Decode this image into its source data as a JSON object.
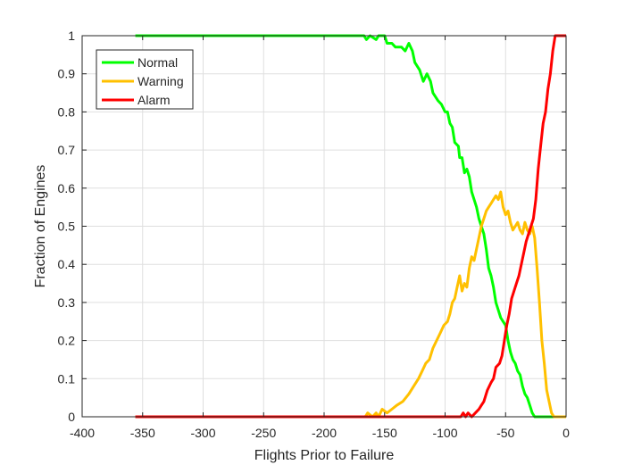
{
  "chart_data": {
    "type": "line",
    "title": "",
    "xlabel": "Flights Prior to Failure",
    "ylabel": "Fraction of Engines",
    "xlim": [
      -400,
      0
    ],
    "ylim": [
      0,
      1
    ],
    "x_ticks": [
      -400,
      -350,
      -300,
      -250,
      -200,
      -150,
      -100,
      -50,
      0
    ],
    "x_tick_labels": [
      "-400",
      "-350",
      "-300",
      "-250",
      "-200",
      "-150",
      "-100",
      "-50",
      "0"
    ],
    "y_ticks": [
      0,
      0.1,
      0.2,
      0.3,
      0.4,
      0.5,
      0.6,
      0.7,
      0.8,
      0.9,
      1
    ],
    "y_tick_labels": [
      "0",
      "0.1",
      "0.2",
      "0.3",
      "0.4",
      "0.5",
      "0.6",
      "0.7",
      "0.8",
      "0.9",
      "1"
    ],
    "grid": true,
    "legend_position": "top-left",
    "series": [
      {
        "name": "Normal",
        "color": "#00ff00",
        "points": [
          [
            -356,
            1.0
          ],
          [
            -167,
            1.0
          ],
          [
            -165,
            0.99
          ],
          [
            -162,
            1.0
          ],
          [
            -157,
            0.99
          ],
          [
            -155,
            1.0
          ],
          [
            -150,
            1.0
          ],
          [
            -148,
            0.98
          ],
          [
            -144,
            0.98
          ],
          [
            -141,
            0.97
          ],
          [
            -136,
            0.97
          ],
          [
            -133,
            0.96
          ],
          [
            -130,
            0.98
          ],
          [
            -127,
            0.96
          ],
          [
            -125,
            0.93
          ],
          [
            -121,
            0.91
          ],
          [
            -118,
            0.88
          ],
          [
            -115,
            0.9
          ],
          [
            -112,
            0.88
          ],
          [
            -110,
            0.85
          ],
          [
            -106,
            0.83
          ],
          [
            -103,
            0.82
          ],
          [
            -100,
            0.8
          ],
          [
            -98,
            0.8
          ],
          [
            -96,
            0.77
          ],
          [
            -94,
            0.76
          ],
          [
            -92,
            0.72
          ],
          [
            -89,
            0.71
          ],
          [
            -88,
            0.68
          ],
          [
            -86,
            0.68
          ],
          [
            -84,
            0.64
          ],
          [
            -82,
            0.65
          ],
          [
            -80,
            0.63
          ],
          [
            -78,
            0.59
          ],
          [
            -76,
            0.57
          ],
          [
            -74,
            0.55
          ],
          [
            -72,
            0.52
          ],
          [
            -70,
            0.5
          ],
          [
            -68,
            0.48
          ],
          [
            -66,
            0.44
          ],
          [
            -64,
            0.39
          ],
          [
            -62,
            0.37
          ],
          [
            -60,
            0.34
          ],
          [
            -58,
            0.3
          ],
          [
            -56,
            0.28
          ],
          [
            -54,
            0.26
          ],
          [
            -52,
            0.25
          ],
          [
            -50,
            0.24
          ],
          [
            -48,
            0.2
          ],
          [
            -46,
            0.17
          ],
          [
            -44,
            0.15
          ],
          [
            -42,
            0.14
          ],
          [
            -40,
            0.12
          ],
          [
            -38,
            0.11
          ],
          [
            -36,
            0.08
          ],
          [
            -34,
            0.06
          ],
          [
            -32,
            0.05
          ],
          [
            -30,
            0.03
          ],
          [
            -28,
            0.01
          ],
          [
            -26,
            0.0
          ],
          [
            0,
            0.0
          ]
        ]
      },
      {
        "name": "Warning",
        "color": "#ffc000",
        "points": [
          [
            -356,
            0.0
          ],
          [
            -166,
            0.0
          ],
          [
            -164,
            0.01
          ],
          [
            -160,
            0.0
          ],
          [
            -157,
            0.01
          ],
          [
            -155,
            0.0
          ],
          [
            -152,
            0.02
          ],
          [
            -148,
            0.01
          ],
          [
            -144,
            0.02
          ],
          [
            -140,
            0.03
          ],
          [
            -135,
            0.04
          ],
          [
            -130,
            0.06
          ],
          [
            -126,
            0.08
          ],
          [
            -122,
            0.1
          ],
          [
            -119,
            0.12
          ],
          [
            -116,
            0.14
          ],
          [
            -113,
            0.15
          ],
          [
            -110,
            0.18
          ],
          [
            -107,
            0.2
          ],
          [
            -104,
            0.22
          ],
          [
            -101,
            0.24
          ],
          [
            -98,
            0.25
          ],
          [
            -96,
            0.27
          ],
          [
            -94,
            0.3
          ],
          [
            -92,
            0.31
          ],
          [
            -90,
            0.34
          ],
          [
            -88,
            0.37
          ],
          [
            -86,
            0.33
          ],
          [
            -84,
            0.35
          ],
          [
            -82,
            0.34
          ],
          [
            -80,
            0.39
          ],
          [
            -78,
            0.42
          ],
          [
            -76,
            0.41
          ],
          [
            -74,
            0.44
          ],
          [
            -72,
            0.47
          ],
          [
            -70,
            0.5
          ],
          [
            -68,
            0.52
          ],
          [
            -66,
            0.54
          ],
          [
            -64,
            0.55
          ],
          [
            -62,
            0.56
          ],
          [
            -60,
            0.57
          ],
          [
            -58,
            0.58
          ],
          [
            -56,
            0.57
          ],
          [
            -54,
            0.59
          ],
          [
            -52,
            0.55
          ],
          [
            -50,
            0.53
          ],
          [
            -48,
            0.54
          ],
          [
            -46,
            0.51
          ],
          [
            -44,
            0.49
          ],
          [
            -42,
            0.5
          ],
          [
            -40,
            0.51
          ],
          [
            -38,
            0.49
          ],
          [
            -36,
            0.48
          ],
          [
            -34,
            0.51
          ],
          [
            -32,
            0.49
          ],
          [
            -30,
            0.48
          ],
          [
            -28,
            0.5
          ],
          [
            -26,
            0.47
          ],
          [
            -24,
            0.39
          ],
          [
            -22,
            0.3
          ],
          [
            -20,
            0.2
          ],
          [
            -18,
            0.14
          ],
          [
            -16,
            0.07
          ],
          [
            -14,
            0.04
          ],
          [
            -12,
            0.01
          ],
          [
            -10,
            0.0
          ],
          [
            0,
            0.0
          ]
        ]
      },
      {
        "name": "Alarm",
        "color": "#ff0000",
        "points": [
          [
            -356,
            0.0
          ],
          [
            -87,
            0.0
          ],
          [
            -85,
            0.01
          ],
          [
            -83,
            0.0
          ],
          [
            -81,
            0.01
          ],
          [
            -78,
            0.0
          ],
          [
            -75,
            0.01
          ],
          [
            -72,
            0.02
          ],
          [
            -70,
            0.03
          ],
          [
            -68,
            0.04
          ],
          [
            -65,
            0.07
          ],
          [
            -62,
            0.09
          ],
          [
            -60,
            0.1
          ],
          [
            -58,
            0.13
          ],
          [
            -55,
            0.14
          ],
          [
            -53,
            0.16
          ],
          [
            -51,
            0.2
          ],
          [
            -49,
            0.24
          ],
          [
            -47,
            0.27
          ],
          [
            -45,
            0.31
          ],
          [
            -43,
            0.33
          ],
          [
            -41,
            0.35
          ],
          [
            -39,
            0.37
          ],
          [
            -37,
            0.4
          ],
          [
            -35,
            0.43
          ],
          [
            -33,
            0.46
          ],
          [
            -31,
            0.48
          ],
          [
            -29,
            0.5
          ],
          [
            -27,
            0.52
          ],
          [
            -25,
            0.57
          ],
          [
            -23,
            0.65
          ],
          [
            -21,
            0.71
          ],
          [
            -19,
            0.77
          ],
          [
            -17,
            0.8
          ],
          [
            -15,
            0.86
          ],
          [
            -13,
            0.9
          ],
          [
            -11,
            0.96
          ],
          [
            -9,
            1.0
          ],
          [
            0,
            1.0
          ]
        ]
      }
    ]
  }
}
